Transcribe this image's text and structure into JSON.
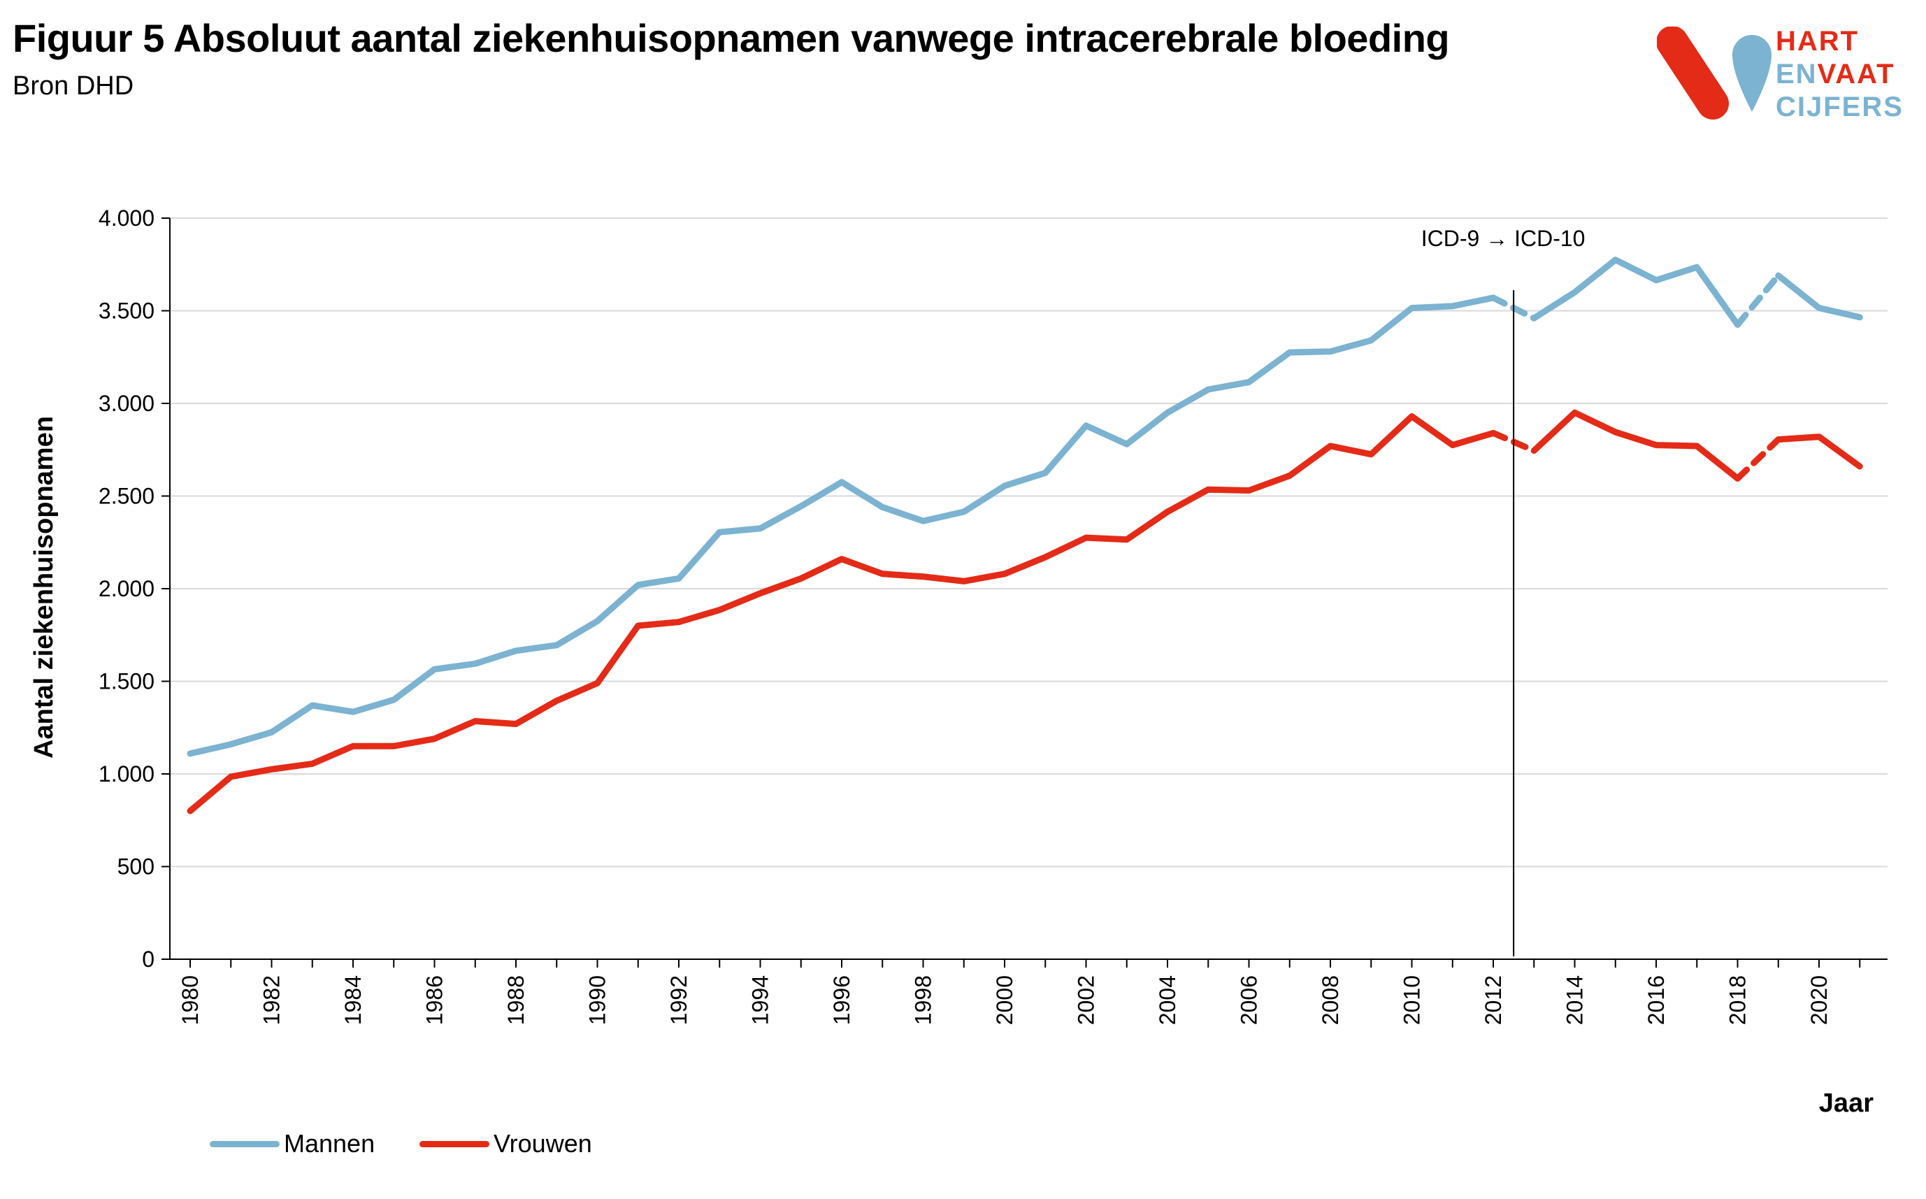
{
  "header": {
    "title": "Figuur 5 Absoluut aantal ziekenhuisopnamen vanwege intracerebrale bloeding",
    "subtitle": "Bron DHD"
  },
  "logo": {
    "line1": "HART",
    "line2a": "EN",
    "line2b": "VAAT",
    "line3": "CIJFERS",
    "color_red": "#e42b17",
    "color_blue": "#7bb3d1"
  },
  "chart_data": {
    "type": "line",
    "xlabel": "Jaar",
    "ylabel": "Aantal ziekenhuisopnamen",
    "ylim": [
      0,
      4000
    ],
    "y_ticks": [
      0,
      500,
      1000,
      1500,
      2000,
      2500,
      3000,
      3500,
      4000
    ],
    "y_tick_labels": [
      "0",
      "500",
      "1.000",
      "1.500",
      "2.000",
      "2.500",
      "3.000",
      "3.500",
      "4.000"
    ],
    "x": [
      1980,
      1981,
      1982,
      1983,
      1984,
      1985,
      1986,
      1987,
      1988,
      1989,
      1990,
      1991,
      1992,
      1993,
      1994,
      1995,
      1996,
      1997,
      1998,
      1999,
      2000,
      2001,
      2002,
      2003,
      2004,
      2005,
      2006,
      2007,
      2008,
      2009,
      2010,
      2011,
      2012,
      2013,
      2014,
      2015,
      2016,
      2017,
      2018,
      2019,
      2020,
      2021
    ],
    "x_tick_labels": [
      "1980",
      "1982",
      "1984",
      "1986",
      "1988",
      "1990",
      "1992",
      "1994",
      "1996",
      "1998",
      "2000",
      "2002",
      "2004",
      "2006",
      "2008",
      "2010",
      "2012",
      "2014",
      "2016",
      "2018",
      "2020"
    ],
    "grid": true,
    "legend_position": "bottom-left",
    "annotation": {
      "text": "ICD-9 → ICD-10",
      "between": [
        2012,
        2013
      ]
    },
    "dashed_segments": [
      [
        2012,
        2013
      ],
      [
        2018,
        2019
      ]
    ],
    "series": [
      {
        "name": "Mannen",
        "color": "#7bb3d1",
        "values": [
          1110,
          1160,
          1225,
          1370,
          1335,
          1400,
          1565,
          1595,
          1665,
          1695,
          1825,
          2020,
          2055,
          2305,
          2325,
          2445,
          2575,
          2440,
          2365,
          2415,
          2555,
          2625,
          2880,
          2780,
          2950,
          3075,
          3115,
          3275,
          3280,
          3340,
          3515,
          3525,
          3570,
          3460,
          3600,
          3775,
          3665,
          3735,
          3425,
          3690,
          3515,
          3465
        ]
      },
      {
        "name": "Vrouwen",
        "color": "#e42b17",
        "values": [
          800,
          985,
          1025,
          1055,
          1150,
          1150,
          1190,
          1285,
          1270,
          1395,
          1490,
          1800,
          1820,
          1885,
          1975,
          2055,
          2160,
          2080,
          2065,
          2040,
          2080,
          2170,
          2275,
          2265,
          2415,
          2535,
          2530,
          2610,
          2770,
          2725,
          2930,
          2775,
          2840,
          2745,
          2950,
          2845,
          2775,
          2770,
          2595,
          2805,
          2820,
          2660
        ]
      }
    ]
  }
}
